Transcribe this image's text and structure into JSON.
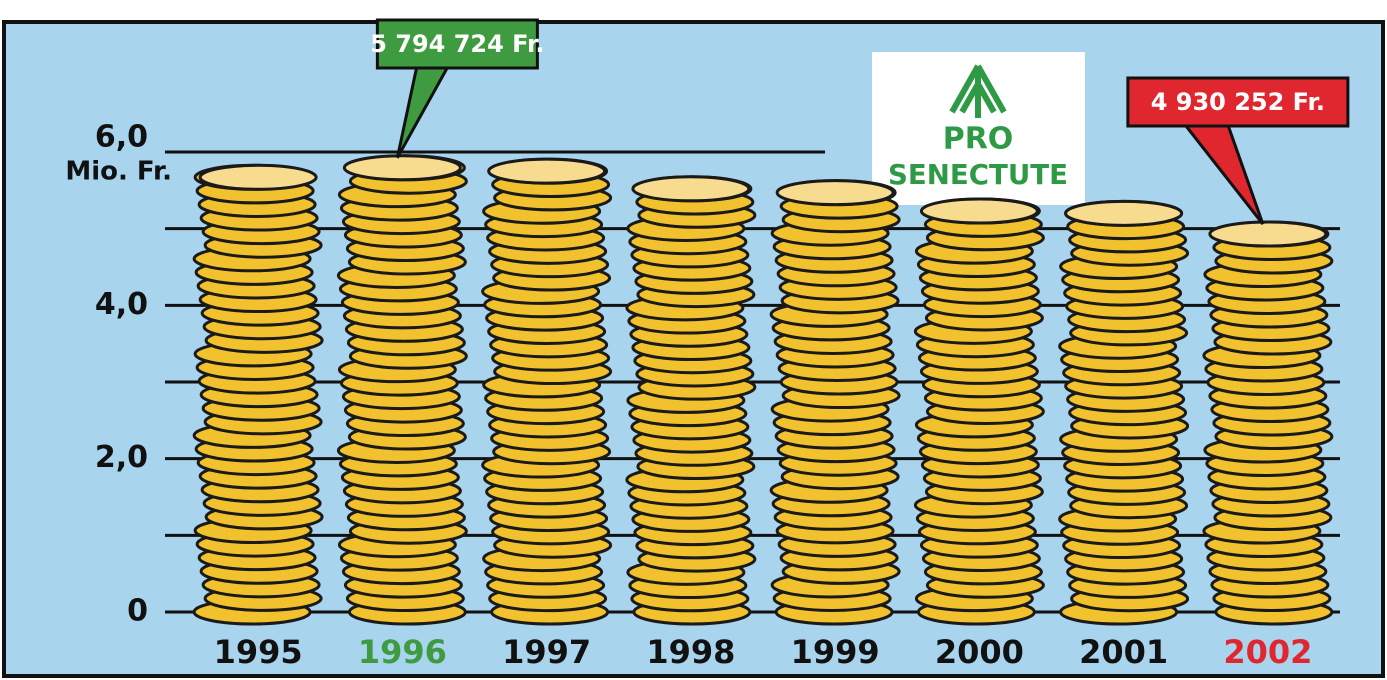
{
  "chart_data": {
    "type": "bar",
    "y_unit": "Mio. Fr.",
    "categories": [
      "1995",
      "1996",
      "1997",
      "1998",
      "1999",
      "2000",
      "2001",
      "2002"
    ],
    "category_colors": [
      "#111111",
      "#3f9b40",
      "#111111",
      "#111111",
      "#111111",
      "#111111",
      "#111111",
      "#e0262e"
    ],
    "values": [
      5.67,
      5.794724,
      5.75,
      5.52,
      5.47,
      5.23,
      5.2,
      4.930252
    ],
    "value_labels": [
      null,
      "5 794 724 Fr.",
      null,
      null,
      null,
      null,
      null,
      "4 930 252 Fr."
    ],
    "label_colors": [
      null,
      "#3f9b40",
      null,
      null,
      null,
      null,
      null,
      "#e0262e"
    ],
    "color": "#f2c12e",
    "ylim": [
      0,
      6
    ],
    "yticks": [
      0,
      {
        "value": 2,
        "label": "2,0"
      },
      {
        "value": 4,
        "label": "4,0"
      },
      {
        "value": 6,
        "label": "6,0"
      }
    ],
    "minor_gridlines": [
      1,
      3,
      5
    ],
    "grid": true,
    "logo": {
      "line1": "PRO",
      "line2": "SENECTUTE"
    }
  }
}
